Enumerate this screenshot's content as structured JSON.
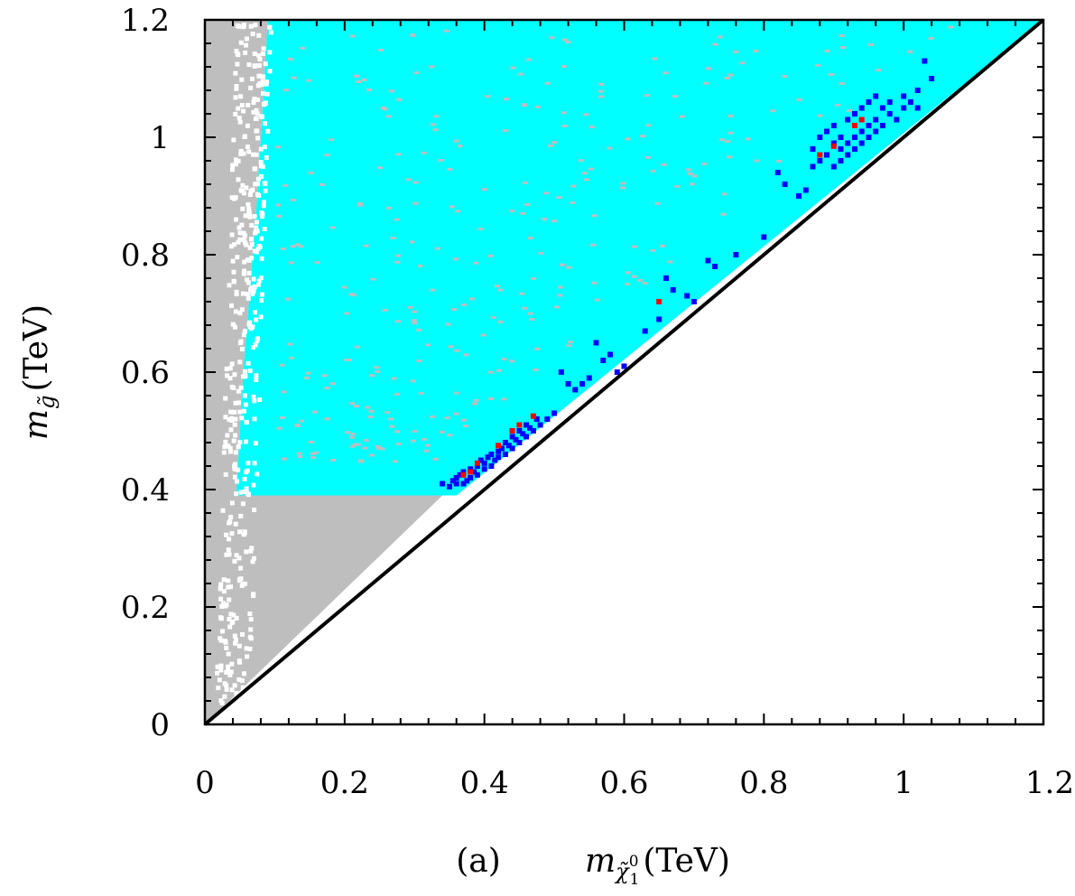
{
  "chart_data": {
    "type": "scatter",
    "title": "",
    "panel_label": "(a)",
    "xlabel": {
      "symbol": "m",
      "subscript": "χ̃",
      "sub_sup": "0",
      "sub_sub": "1",
      "unit": "(TeV)"
    },
    "ylabel": {
      "symbol": "m",
      "subscript": "g̃",
      "unit": "(TeV)"
    },
    "xlim": [
      0,
      1.2
    ],
    "ylim": [
      0,
      1.2
    ],
    "xticks": [
      "0",
      "0.2",
      "0.4",
      "0.6",
      "0.8",
      "1",
      "1.2"
    ],
    "yticks": [
      "0",
      "0.2",
      "0.4",
      "0.6",
      "0.8",
      "1",
      "1.2"
    ],
    "grid": false,
    "legend": "none",
    "colors": {
      "gray": "#bebebe",
      "cyan": "#00ffff",
      "blue": "#0000ff",
      "red": "#ff0000",
      "diagonal": "#000000"
    },
    "regions": [
      {
        "name": "gray",
        "polygon": [
          [
            0,
            0
          ],
          [
            0,
            1.2
          ],
          [
            0.09,
            1.2
          ],
          [
            0.075,
            0.9
          ],
          [
            0.055,
            0.6
          ],
          [
            0.045,
            0.39
          ],
          [
            0.34,
            0.39
          ],
          [
            0,
            0
          ]
        ]
      },
      {
        "name": "cyan",
        "polygon": [
          [
            0.045,
            0.39
          ],
          [
            0.055,
            0.6
          ],
          [
            0.075,
            0.9
          ],
          [
            0.09,
            1.2
          ],
          [
            1.2,
            1.2
          ],
          [
            0.36,
            0.39
          ]
        ]
      }
    ],
    "diagonal": {
      "x": [
        0,
        1.2
      ],
      "y": [
        0,
        1.2
      ]
    },
    "series": [
      {
        "name": "blue",
        "points": [
          [
            0.34,
            0.41
          ],
          [
            0.35,
            0.405
          ],
          [
            0.355,
            0.415
          ],
          [
            0.36,
            0.41
          ],
          [
            0.36,
            0.42
          ],
          [
            0.365,
            0.425
          ],
          [
            0.37,
            0.41
          ],
          [
            0.37,
            0.43
          ],
          [
            0.375,
            0.415
          ],
          [
            0.38,
            0.42
          ],
          [
            0.38,
            0.435
          ],
          [
            0.385,
            0.43
          ],
          [
            0.39,
            0.44
          ],
          [
            0.39,
            0.425
          ],
          [
            0.395,
            0.45
          ],
          [
            0.4,
            0.435
          ],
          [
            0.4,
            0.445
          ],
          [
            0.405,
            0.455
          ],
          [
            0.41,
            0.44
          ],
          [
            0.41,
            0.46
          ],
          [
            0.415,
            0.45
          ],
          [
            0.42,
            0.465
          ],
          [
            0.42,
            0.455
          ],
          [
            0.425,
            0.47
          ],
          [
            0.43,
            0.46
          ],
          [
            0.43,
            0.48
          ],
          [
            0.435,
            0.475
          ],
          [
            0.44,
            0.47
          ],
          [
            0.44,
            0.49
          ],
          [
            0.445,
            0.485
          ],
          [
            0.45,
            0.5
          ],
          [
            0.45,
            0.48
          ],
          [
            0.455,
            0.495
          ],
          [
            0.46,
            0.51
          ],
          [
            0.46,
            0.49
          ],
          [
            0.465,
            0.505
          ],
          [
            0.47,
            0.5
          ],
          [
            0.475,
            0.52
          ],
          [
            0.48,
            0.51
          ],
          [
            0.49,
            0.52
          ],
          [
            0.5,
            0.53
          ],
          [
            0.51,
            0.6
          ],
          [
            0.52,
            0.58
          ],
          [
            0.53,
            0.57
          ],
          [
            0.54,
            0.58
          ],
          [
            0.55,
            0.59
          ],
          [
            0.56,
            0.65
          ],
          [
            0.57,
            0.62
          ],
          [
            0.58,
            0.63
          ],
          [
            0.59,
            0.6
          ],
          [
            0.6,
            0.61
          ],
          [
            0.63,
            0.67
          ],
          [
            0.65,
            0.69
          ],
          [
            0.66,
            0.76
          ],
          [
            0.67,
            0.74
          ],
          [
            0.69,
            0.73
          ],
          [
            0.7,
            0.72
          ],
          [
            0.72,
            0.79
          ],
          [
            0.73,
            0.78
          ],
          [
            0.76,
            0.8
          ],
          [
            0.8,
            0.83
          ],
          [
            0.82,
            0.94
          ],
          [
            0.83,
            0.92
          ],
          [
            0.85,
            0.9
          ],
          [
            0.86,
            0.91
          ],
          [
            0.87,
            0.95
          ],
          [
            0.87,
            0.98
          ],
          [
            0.88,
            1.0
          ],
          [
            0.88,
            0.96
          ],
          [
            0.89,
            0.97
          ],
          [
            0.89,
            1.01
          ],
          [
            0.9,
            0.99
          ],
          [
            0.9,
            0.95
          ],
          [
            0.9,
            1.02
          ],
          [
            0.91,
            0.98
          ],
          [
            0.91,
            1.0
          ],
          [
            0.91,
            0.96
          ],
          [
            0.92,
            1.03
          ],
          [
            0.92,
            0.99
          ],
          [
            0.92,
            0.97
          ],
          [
            0.93,
            1.04
          ],
          [
            0.93,
            1.0
          ],
          [
            0.93,
            0.98
          ],
          [
            0.94,
            1.05
          ],
          [
            0.94,
            1.01
          ],
          [
            0.94,
            0.99
          ],
          [
            0.95,
            1.06
          ],
          [
            0.95,
            1.02
          ],
          [
            0.95,
            1.0
          ],
          [
            0.96,
            1.07
          ],
          [
            0.96,
            1.03
          ],
          [
            0.96,
            1.01
          ],
          [
            0.97,
            1.05
          ],
          [
            0.97,
            1.02
          ],
          [
            0.98,
            1.06
          ],
          [
            0.98,
            1.04
          ],
          [
            0.99,
            1.03
          ],
          [
            1.0,
            1.05
          ],
          [
            1.0,
            1.07
          ],
          [
            1.01,
            1.06
          ],
          [
            1.02,
            1.05
          ],
          [
            1.02,
            1.08
          ],
          [
            1.03,
            1.13
          ],
          [
            1.04,
            1.1
          ]
        ]
      },
      {
        "name": "red",
        "points": [
          [
            0.37,
            0.425
          ],
          [
            0.38,
            0.43
          ],
          [
            0.39,
            0.445
          ],
          [
            0.42,
            0.475
          ],
          [
            0.44,
            0.5
          ],
          [
            0.45,
            0.51
          ],
          [
            0.47,
            0.525
          ],
          [
            0.65,
            0.72
          ],
          [
            0.88,
            0.97
          ],
          [
            0.9,
            0.985
          ],
          [
            0.93,
            1.02
          ],
          [
            0.94,
            1.03
          ]
        ]
      }
    ]
  }
}
